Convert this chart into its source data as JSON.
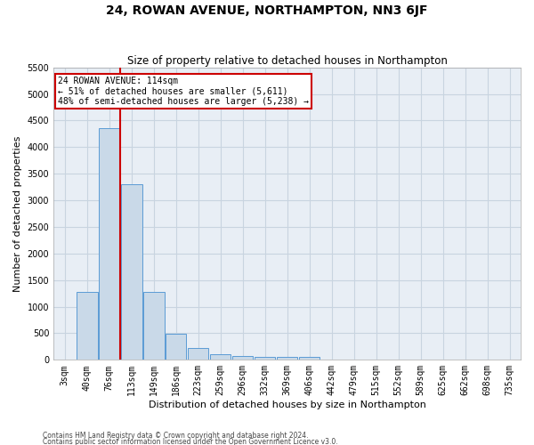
{
  "title": "24, ROWAN AVENUE, NORTHAMPTON, NN3 6JF",
  "subtitle": "Size of property relative to detached houses in Northampton",
  "xlabel": "Distribution of detached houses by size in Northampton",
  "ylabel": "Number of detached properties",
  "footnote1": "Contains HM Land Registry data © Crown copyright and database right 2024.",
  "footnote2": "Contains public sector information licensed under the Open Government Licence v3.0.",
  "bin_labels": [
    "3sqm",
    "40sqm",
    "76sqm",
    "113sqm",
    "149sqm",
    "186sqm",
    "223sqm",
    "259sqm",
    "296sqm",
    "332sqm",
    "369sqm",
    "406sqm",
    "442sqm",
    "479sqm",
    "515sqm",
    "552sqm",
    "589sqm",
    "625sqm",
    "662sqm",
    "698sqm",
    "735sqm"
  ],
  "bar_values": [
    0,
    1270,
    4350,
    3300,
    1270,
    490,
    220,
    100,
    80,
    60,
    50,
    50,
    0,
    0,
    0,
    0,
    0,
    0,
    0,
    0,
    0
  ],
  "bar_color": "#c9d9e8",
  "bar_edge_color": "#5b9bd5",
  "grid_color": "#c8d4e0",
  "bg_color": "#e8eef5",
  "vline_color": "#cc0000",
  "vline_pos": 2.5,
  "ylim": [
    0,
    5500
  ],
  "yticks": [
    0,
    500,
    1000,
    1500,
    2000,
    2500,
    3000,
    3500,
    4000,
    4500,
    5000,
    5500
  ],
  "annotation_title": "24 ROWAN AVENUE: 114sqm",
  "annotation_line1": "← 51% of detached houses are smaller (5,611)",
  "annotation_line2": "48% of semi-detached houses are larger (5,238) →",
  "annotation_box_color": "#cc0000",
  "title_fontsize": 10,
  "subtitle_fontsize": 8.5,
  "xlabel_fontsize": 8,
  "ylabel_fontsize": 8,
  "tick_fontsize": 7,
  "ytick_fontsize": 7,
  "annotation_fontsize": 7,
  "footnote_fontsize": 5.5
}
